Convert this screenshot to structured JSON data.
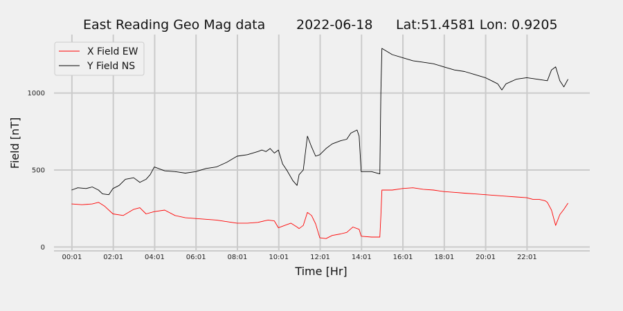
{
  "chart_data": {
    "type": "line",
    "title": {
      "name": "East Reading Geo Mag data",
      "date": "2022-06-18",
      "location": "Lat:51.4581  Lon: 0.9205"
    },
    "xlabel": "Time  [Hr]",
    "ylabel": "Field  [nT]",
    "x_unit": "hours",
    "xlim": [
      -0.85,
      25.05
    ],
    "ylim": [
      -25,
      1380
    ],
    "x_ticks": [
      {
        "x": 0.0167,
        "label": "00:01"
      },
      {
        "x": 2.0167,
        "label": "02:01"
      },
      {
        "x": 4.0167,
        "label": "04:01"
      },
      {
        "x": 6.0167,
        "label": "06:01"
      },
      {
        "x": 8.0167,
        "label": "08:01"
      },
      {
        "x": 10.0167,
        "label": "10:01"
      },
      {
        "x": 12.0167,
        "label": "12:01"
      },
      {
        "x": 14.0167,
        "label": "14:01"
      },
      {
        "x": 16.0167,
        "label": "16:01"
      },
      {
        "x": 18.0167,
        "label": "18:01"
      },
      {
        "x": 20.0167,
        "label": "20:01"
      },
      {
        "x": 22.0167,
        "label": "22:01"
      }
    ],
    "y_ticks": [
      {
        "y": 0,
        "label": "0"
      },
      {
        "y": 500,
        "label": "500"
      },
      {
        "y": 1000,
        "label": "1000"
      }
    ],
    "grid": true,
    "legend_position": "top-left",
    "series": [
      {
        "name": "X Field EW",
        "color": "#ff0000",
        "x": [
          0.0,
          0.5,
          1.0,
          1.3,
          1.6,
          2.0,
          2.5,
          3.0,
          3.3,
          3.6,
          4.0,
          4.5,
          5.0,
          5.5,
          6.0,
          6.5,
          7.0,
          7.5,
          8.0,
          8.5,
          9.0,
          9.5,
          9.8,
          10.0,
          10.3,
          10.6,
          10.9,
          11.0,
          11.2,
          11.4,
          11.6,
          11.8,
          12.0,
          12.3,
          12.6,
          13.0,
          13.3,
          13.6,
          13.9,
          14.0,
          14.5,
          14.9,
          14.95,
          15.0,
          15.5,
          16.0,
          16.5,
          17.0,
          17.5,
          18.0,
          18.5,
          19.0,
          19.5,
          20.0,
          20.5,
          21.0,
          21.5,
          22.0,
          22.3,
          22.6,
          22.9,
          23.0,
          23.2,
          23.4,
          23.6,
          23.8,
          24.0
        ],
        "y": [
          280,
          275,
          280,
          290,
          265,
          215,
          205,
          245,
          255,
          215,
          230,
          240,
          205,
          190,
          185,
          180,
          175,
          165,
          155,
          155,
          160,
          175,
          170,
          125,
          140,
          155,
          130,
          120,
          140,
          225,
          205,
          150,
          60,
          55,
          75,
          85,
          95,
          130,
          115,
          70,
          65,
          65,
          200,
          370,
          370,
          380,
          385,
          375,
          370,
          360,
          355,
          350,
          345,
          340,
          335,
          330,
          325,
          320,
          310,
          310,
          300,
          290,
          240,
          140,
          210,
          245,
          285
        ]
      },
      {
        "name": "Y Field NS",
        "color": "#000000",
        "x": [
          0.0,
          0.3,
          0.7,
          1.0,
          1.3,
          1.5,
          1.8,
          2.0,
          2.3,
          2.6,
          3.0,
          3.3,
          3.6,
          3.8,
          4.0,
          4.5,
          5.0,
          5.5,
          6.0,
          6.5,
          7.0,
          7.5,
          8.0,
          8.5,
          9.0,
          9.2,
          9.4,
          9.6,
          9.8,
          10.0,
          10.2,
          10.4,
          10.7,
          10.9,
          11.0,
          11.2,
          11.4,
          11.6,
          11.8,
          12.0,
          12.3,
          12.6,
          13.0,
          13.3,
          13.5,
          13.8,
          13.9,
          14.0,
          14.5,
          14.9,
          14.95,
          15.0,
          15.5,
          16.0,
          16.5,
          17.0,
          17.5,
          18.0,
          18.5,
          19.0,
          19.5,
          20.0,
          20.3,
          20.6,
          20.8,
          21.0,
          21.5,
          22.0,
          22.5,
          23.0,
          23.2,
          23.4,
          23.6,
          23.8,
          24.0
        ],
        "y": [
          370,
          385,
          380,
          390,
          370,
          345,
          340,
          380,
          400,
          440,
          450,
          420,
          440,
          470,
          520,
          495,
          490,
          480,
          490,
          510,
          520,
          550,
          590,
          600,
          620,
          630,
          620,
          640,
          610,
          630,
          540,
          500,
          430,
          400,
          470,
          500,
          720,
          650,
          590,
          600,
          640,
          670,
          690,
          700,
          740,
          760,
          720,
          490,
          490,
          475,
          1000,
          1290,
          1250,
          1230,
          1210,
          1200,
          1190,
          1170,
          1150,
          1140,
          1120,
          1100,
          1080,
          1060,
          1020,
          1060,
          1090,
          1100,
          1090,
          1080,
          1150,
          1170,
          1080,
          1040,
          1090
        ]
      }
    ]
  }
}
